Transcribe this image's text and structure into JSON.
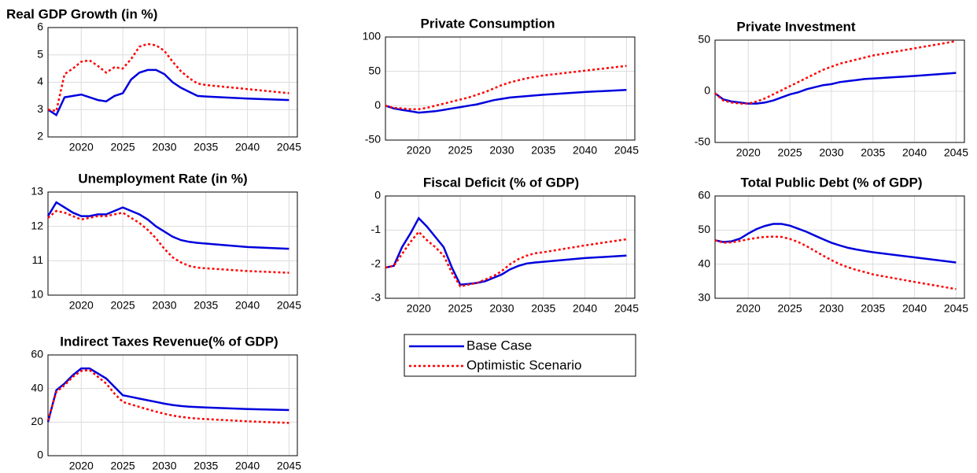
{
  "chart_data": [
    {
      "type": "line",
      "title": "Real GDP Growth (in %)",
      "x": [
        2016,
        2017,
        2018,
        2019,
        2020,
        2021,
        2022,
        2023,
        2024,
        2025,
        2026,
        2027,
        2028,
        2029,
        2030,
        2031,
        2032,
        2033,
        2034,
        2035,
        2040,
        2045
      ],
      "xlim": [
        2016,
        2046
      ],
      "xticks": [
        2020,
        2025,
        2030,
        2035,
        2040,
        2045
      ],
      "ylim": [
        2,
        6
      ],
      "yticks": [
        2,
        3,
        4,
        5,
        6
      ],
      "grid": true,
      "series": [
        {
          "name": "Base Case",
          "color": "#0000dd",
          "line_style": "solid",
          "values": [
            3.0,
            2.8,
            3.45,
            3.5,
            3.55,
            3.45,
            3.35,
            3.3,
            3.5,
            3.6,
            4.1,
            4.35,
            4.45,
            4.45,
            4.3,
            4.0,
            3.8,
            3.65,
            3.5,
            3.48,
            3.4,
            3.35
          ]
        },
        {
          "name": "Optimistic Scenario",
          "color": "#ff0000",
          "line_style": "dotted",
          "values": [
            3.0,
            2.95,
            4.3,
            4.5,
            4.75,
            4.8,
            4.6,
            4.35,
            4.55,
            4.5,
            4.85,
            5.3,
            5.4,
            5.35,
            5.15,
            4.75,
            4.4,
            4.15,
            3.95,
            3.9,
            3.75,
            3.6
          ]
        }
      ]
    },
    {
      "type": "line",
      "title": "Private Consumption",
      "x": [
        2016,
        2017,
        2018,
        2019,
        2020,
        2021,
        2022,
        2023,
        2024,
        2025,
        2026,
        2027,
        2028,
        2029,
        2030,
        2031,
        2032,
        2033,
        2034,
        2035,
        2040,
        2045
      ],
      "xlim": [
        2016,
        2046
      ],
      "xticks": [
        2020,
        2025,
        2030,
        2035,
        2040,
        2045
      ],
      "ylim": [
        -50,
        100
      ],
      "yticks": [
        -50,
        0,
        50,
        100
      ],
      "grid": true,
      "series": [
        {
          "name": "Base Case",
          "color": "#0000dd",
          "line_style": "solid",
          "values": [
            0,
            -4,
            -6,
            -8,
            -10,
            -9,
            -8,
            -6,
            -4,
            -2,
            0,
            2,
            5,
            8,
            10,
            12,
            13,
            14,
            15,
            16,
            20,
            23
          ]
        },
        {
          "name": "Optimistic Scenario",
          "color": "#ff0000",
          "line_style": "dotted",
          "values": [
            0,
            -3,
            -4,
            -5,
            -5,
            -3,
            0,
            3,
            6,
            9,
            12,
            16,
            20,
            25,
            30,
            34,
            37,
            40,
            42,
            44,
            51,
            58
          ]
        }
      ]
    },
    {
      "type": "line",
      "title": "Private Investment",
      "x": [
        2016,
        2017,
        2018,
        2019,
        2020,
        2021,
        2022,
        2023,
        2024,
        2025,
        2026,
        2027,
        2028,
        2029,
        2030,
        2031,
        2032,
        2033,
        2034,
        2035,
        2040,
        2045
      ],
      "xlim": [
        2016,
        2046
      ],
      "xticks": [
        2020,
        2025,
        2030,
        2035,
        2040,
        2045
      ],
      "ylim": [
        -50,
        50
      ],
      "yticks": [
        -50,
        0,
        50
      ],
      "grid": true,
      "series": [
        {
          "name": "Base Case",
          "color": "#0000dd",
          "line_style": "solid",
          "values": [
            -2,
            -8,
            -10,
            -11,
            -12,
            -12,
            -11,
            -9,
            -6,
            -3,
            -1,
            2,
            4,
            6,
            7,
            9,
            10,
            11,
            12,
            12.5,
            15,
            18
          ]
        },
        {
          "name": "Optimistic Scenario",
          "color": "#ff0000",
          "line_style": "dotted",
          "values": [
            -2,
            -9,
            -11,
            -12,
            -12,
            -10,
            -7,
            -3,
            1,
            5,
            9,
            13,
            17,
            21,
            24,
            27,
            29,
            31,
            33,
            35,
            42,
            49
          ]
        }
      ]
    },
    {
      "type": "line",
      "title": "Unemployment Rate (in %)",
      "x": [
        2016,
        2017,
        2018,
        2019,
        2020,
        2021,
        2022,
        2023,
        2024,
        2025,
        2026,
        2027,
        2028,
        2029,
        2030,
        2031,
        2032,
        2033,
        2034,
        2035,
        2040,
        2045
      ],
      "xlim": [
        2016,
        2046
      ],
      "xticks": [
        2020,
        2025,
        2030,
        2035,
        2040,
        2045
      ],
      "ylim": [
        10,
        13
      ],
      "yticks": [
        10,
        11,
        12,
        13
      ],
      "grid": true,
      "series": [
        {
          "name": "Base Case",
          "color": "#0000dd",
          "line_style": "solid",
          "values": [
            12.3,
            12.7,
            12.55,
            12.4,
            12.3,
            12.3,
            12.35,
            12.35,
            12.45,
            12.55,
            12.45,
            12.35,
            12.2,
            12.0,
            11.85,
            11.7,
            11.6,
            11.55,
            11.52,
            11.5,
            11.4,
            11.35
          ]
        },
        {
          "name": "Optimistic Scenario",
          "color": "#ff0000",
          "line_style": "dotted",
          "values": [
            12.25,
            12.45,
            12.4,
            12.3,
            12.2,
            12.25,
            12.3,
            12.3,
            12.35,
            12.4,
            12.25,
            12.1,
            11.9,
            11.65,
            11.35,
            11.1,
            10.95,
            10.85,
            10.8,
            10.78,
            10.7,
            10.65
          ]
        }
      ]
    },
    {
      "type": "line",
      "title": "Fiscal Deficit (% of GDP)",
      "x": [
        2016,
        2017,
        2018,
        2019,
        2020,
        2021,
        2022,
        2023,
        2024,
        2025,
        2026,
        2027,
        2028,
        2029,
        2030,
        2031,
        2032,
        2033,
        2034,
        2035,
        2040,
        2045
      ],
      "xlim": [
        2016,
        2046
      ],
      "xticks": [
        2020,
        2025,
        2030,
        2035,
        2040,
        2045
      ],
      "ylim": [
        -3,
        0
      ],
      "yticks": [
        -3,
        -2,
        -1,
        0
      ],
      "grid": true,
      "series": [
        {
          "name": "Base Case",
          "color": "#0000dd",
          "line_style": "solid",
          "values": [
            -2.1,
            -2.05,
            -1.5,
            -1.1,
            -0.65,
            -0.9,
            -1.2,
            -1.5,
            -2.1,
            -2.6,
            -2.58,
            -2.55,
            -2.5,
            -2.4,
            -2.3,
            -2.15,
            -2.05,
            -1.98,
            -1.95,
            -1.93,
            -1.82,
            -1.75
          ]
        },
        {
          "name": "Optimistic Scenario",
          "color": "#ff0000",
          "line_style": "dotted",
          "values": [
            -2.1,
            -2.05,
            -1.7,
            -1.35,
            -1.05,
            -1.3,
            -1.5,
            -1.75,
            -2.25,
            -2.65,
            -2.6,
            -2.55,
            -2.45,
            -2.35,
            -2.2,
            -2.0,
            -1.85,
            -1.75,
            -1.68,
            -1.65,
            -1.45,
            -1.27
          ]
        }
      ]
    },
    {
      "type": "line",
      "title": "Total Public Debt (% of GDP)",
      "x": [
        2016,
        2017,
        2018,
        2019,
        2020,
        2021,
        2022,
        2023,
        2024,
        2025,
        2026,
        2027,
        2028,
        2029,
        2030,
        2031,
        2032,
        2033,
        2034,
        2035,
        2040,
        2045
      ],
      "xlim": [
        2016,
        2046
      ],
      "xticks": [
        2020,
        2025,
        2030,
        2035,
        2040,
        2045
      ],
      "ylim": [
        30,
        60
      ],
      "yticks": [
        30,
        40,
        50,
        60
      ],
      "grid": true,
      "series": [
        {
          "name": "Base Case",
          "color": "#0000dd",
          "line_style": "solid",
          "values": [
            47,
            46.5,
            46.7,
            47.5,
            49,
            50.3,
            51.2,
            51.8,
            51.8,
            51.3,
            50.4,
            49.5,
            48.4,
            47.3,
            46.3,
            45.5,
            44.8,
            44.3,
            43.9,
            43.5,
            42,
            40.5
          ]
        },
        {
          "name": "Optimistic Scenario",
          "color": "#ff0000",
          "line_style": "dotted",
          "values": [
            47,
            46.3,
            46.4,
            46.8,
            47.3,
            47.7,
            48,
            48.1,
            48,
            47.4,
            46.5,
            45.3,
            43.9,
            42.5,
            41.2,
            40,
            39.1,
            38.3,
            37.7,
            37,
            34.8,
            32.7
          ]
        }
      ]
    },
    {
      "type": "line",
      "title": "Indirect Taxes Revenue(% of GDP)",
      "x": [
        2016,
        2017,
        2018,
        2019,
        2020,
        2021,
        2022,
        2023,
        2024,
        2025,
        2026,
        2027,
        2028,
        2029,
        2030,
        2031,
        2032,
        2033,
        2034,
        2035,
        2040,
        2045
      ],
      "xlim": [
        2016,
        2046
      ],
      "xticks": [
        2020,
        2025,
        2030,
        2035,
        2040,
        2045
      ],
      "ylim": [
        0,
        60
      ],
      "yticks": [
        0,
        20,
        40,
        60
      ],
      "grid": true,
      "series": [
        {
          "name": "Base Case",
          "color": "#0000dd",
          "line_style": "solid",
          "values": [
            20,
            39,
            43,
            48,
            52,
            52,
            49,
            46,
            41,
            36,
            35,
            34,
            33,
            32,
            31,
            30.2,
            29.6,
            29.2,
            28.9,
            28.7,
            27.8,
            27.2
          ]
        },
        {
          "name": "Optimistic Scenario",
          "color": "#ff0000",
          "line_style": "dotted",
          "values": [
            21,
            38,
            42,
            47,
            50.5,
            51,
            47,
            43,
            37,
            32,
            30.5,
            29,
            27.6,
            26.2,
            25,
            23.9,
            23.1,
            22.5,
            22.1,
            21.8,
            20.5,
            19.5
          ]
        }
      ]
    }
  ]
}
